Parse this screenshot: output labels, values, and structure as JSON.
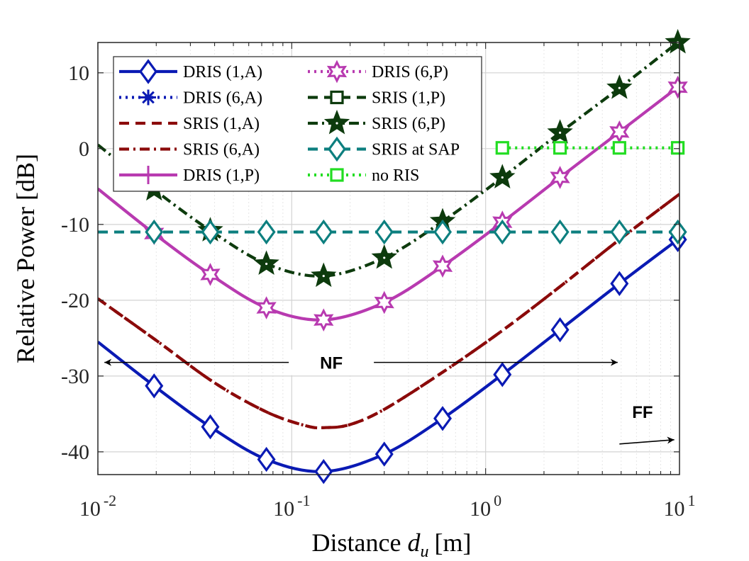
{
  "chart_data": {
    "type": "line",
    "xscale": "log",
    "xlim": [
      0.01,
      10
    ],
    "ylim": [
      -43,
      14
    ],
    "grid": true,
    "legend_position": "top-left",
    "xlabel": "Distance",
    "xlabel_var": "d",
    "xlabel_sub": "u",
    "xlabel_unit": "[m]",
    "ylabel": "Relative Power [dB]",
    "xticks": [
      {
        "value": 0.01,
        "base": "10",
        "exp": "-2"
      },
      {
        "value": 0.1,
        "base": "10",
        "exp": "-1"
      },
      {
        "value": 1,
        "base": "10",
        "exp": "0"
      },
      {
        "value": 10,
        "base": "10",
        "exp": "1"
      }
    ],
    "yticks": [
      {
        "value": 10,
        "label": "10"
      },
      {
        "value": 0,
        "label": "0"
      },
      {
        "value": -10,
        "label": "-10"
      },
      {
        "value": -20,
        "label": "-20"
      },
      {
        "value": -30,
        "label": "-30"
      },
      {
        "value": -40,
        "label": "-40"
      }
    ],
    "series": [
      {
        "name": "DRIS (1,A)",
        "color": "#0a1ab4",
        "dash": "solid",
        "marker": "diamond",
        "x": [
          0.01,
          0.0195,
          0.038,
          0.074,
          0.146,
          0.3,
          0.6,
          1.22,
          2.42,
          4.9,
          9.8
        ],
        "y": [
          -25.5,
          -31.3,
          -36.7,
          -41.0,
          -42.6,
          -40.3,
          -35.6,
          -29.8,
          -23.9,
          -17.8,
          -12.0
        ],
        "markers_x": [
          0.0195,
          0.038,
          0.074,
          0.146,
          0.3,
          0.6,
          1.22,
          2.42,
          4.9,
          9.8
        ],
        "markers_y": [
          -31.3,
          -36.7,
          -41.0,
          -42.6,
          -40.3,
          -35.6,
          -29.8,
          -23.9,
          -17.8,
          -12.0
        ]
      },
      {
        "name": "DRIS (6,A)",
        "color": "#0a1ab4",
        "dash": "dotted",
        "marker": "asterisk",
        "x": [
          9.8
        ],
        "y": [
          -12.0
        ],
        "markers_x": [],
        "markers_y": []
      },
      {
        "name": "SRIS (1,A)",
        "color": "#8b0a0a",
        "dash": "dashed",
        "marker": "none",
        "x": [
          0.01,
          0.02,
          0.04,
          0.075,
          0.12,
          0.15,
          0.2,
          0.3,
          0.6,
          1.22,
          2.42,
          4.9,
          10
        ],
        "y": [
          -19.8,
          -25.3,
          -30.9,
          -34.8,
          -36.6,
          -36.8,
          -36.4,
          -34.4,
          -29.5,
          -24.0,
          -18.2,
          -12.0,
          -6.0
        ],
        "markers_x": [],
        "markers_y": []
      },
      {
        "name": "SRIS (6,A)",
        "color": "#8b0a0a",
        "dash": "dashdot",
        "marker": "none",
        "x": [
          0.01,
          0.02,
          0.04,
          0.075,
          0.12,
          0.15,
          0.2,
          0.3,
          0.6,
          1.22,
          2.42,
          4.9,
          10
        ],
        "y": [
          -19.8,
          -25.3,
          -30.9,
          -34.8,
          -36.6,
          -36.8,
          -36.4,
          -34.4,
          -29.5,
          -24.0,
          -18.2,
          -12.0,
          -6.0
        ],
        "markers_x": [],
        "markers_y": []
      },
      {
        "name": "DRIS (1,P)",
        "color": "#b83ab0",
        "dash": "solid",
        "marker": "plus",
        "x": [
          0.01,
          0.0195,
          0.038,
          0.074,
          0.146,
          0.3,
          0.6,
          1.22,
          2.42,
          4.9,
          9.8
        ],
        "y": [
          -5.3,
          -11.2,
          -16.6,
          -21.0,
          -22.6,
          -20.3,
          -15.5,
          -9.7,
          -3.8,
          2.2,
          8.1
        ],
        "markers_x": [],
        "markers_y": []
      },
      {
        "name": "DRIS (6,P)",
        "color": "#b83ab0",
        "dash": "dotted",
        "marker": "hexagram",
        "x": [
          9.8
        ],
        "y": [
          8.1
        ],
        "markers_x": [
          0.0195,
          0.038,
          0.074,
          0.146,
          0.3,
          0.6,
          1.22,
          2.42,
          4.9,
          9.8
        ],
        "markers_y": [
          -11.2,
          -16.6,
          -21.0,
          -22.6,
          -20.3,
          -15.5,
          -9.7,
          -3.8,
          2.2,
          8.1
        ]
      },
      {
        "name": "SRIS (1,P)",
        "color": "#0d3b0d",
        "dash": "dashed",
        "marker": "square",
        "x": [
          9.8
        ],
        "y": [
          14.0
        ],
        "markers_x": [],
        "markers_y": []
      },
      {
        "name": "SRIS (6,P)",
        "color": "#0d3b0d",
        "dash": "dashdot",
        "marker": "pentagram",
        "x": [
          0.01,
          0.0195,
          0.038,
          0.074,
          0.146,
          0.3,
          0.6,
          1.22,
          2.42,
          4.9,
          9.8
        ],
        "y": [
          0.5,
          -5.4,
          -10.8,
          -15.2,
          -16.8,
          -14.4,
          -9.6,
          -3.8,
          2.1,
          8.0,
          14.0
        ],
        "markers_x": [
          0.0195,
          0.038,
          0.074,
          0.146,
          0.3,
          0.6,
          1.22,
          2.42,
          4.9,
          9.8
        ],
        "markers_y": [
          -5.4,
          -10.8,
          -15.2,
          -16.8,
          -14.4,
          -9.6,
          -3.8,
          2.1,
          8.0,
          14.0
        ]
      },
      {
        "name": "SRIS at SAP",
        "color": "#0d7f7f",
        "dash": "dashed",
        "marker": "diamond",
        "x": [
          0.01,
          10
        ],
        "y": [
          -11.0,
          -11.0
        ],
        "markers_x": [
          0.0195,
          0.038,
          0.074,
          0.146,
          0.3,
          0.6,
          1.22,
          2.42,
          4.9,
          9.8
        ],
        "markers_y": [
          -11.0,
          -11.0,
          -11.0,
          -11.0,
          -11.0,
          -11.0,
          -11.0,
          -11.0,
          -11.0,
          -11.0
        ]
      },
      {
        "name": "no RIS",
        "color": "#22dd22",
        "dash": "dotted",
        "marker": "square",
        "x": [
          1.22,
          10
        ],
        "y": [
          0.1,
          0.1
        ],
        "markers_x": [
          1.22,
          2.42,
          4.9,
          9.8
        ],
        "markers_y": [
          0.1,
          0.1,
          0.1,
          0.1
        ]
      }
    ],
    "annotations": [
      {
        "text": "NF",
        "from_x": 0.0108,
        "to_x": 4.8,
        "y": -28.2,
        "label_x": 0.16,
        "label_y": -28.2,
        "arrows": "both"
      },
      {
        "text": "FF",
        "from_x": 4.9,
        "to_x": 9.4,
        "y": -38.4,
        "label_x": 5.7,
        "label_y": -34.7,
        "arrows": "end"
      }
    ]
  }
}
